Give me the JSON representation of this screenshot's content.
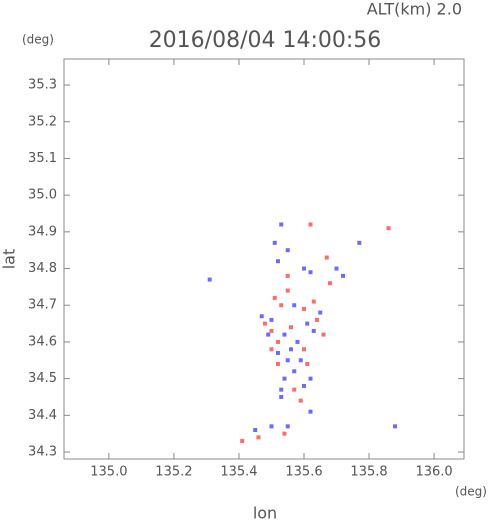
{
  "chart_data": {
    "type": "scatter",
    "title": "2016/08/04 14:00:56",
    "subtitle": "ALT(km) 2.0",
    "x_label": "lon",
    "y_label": "lat",
    "x_unit": "(deg)",
    "y_unit": "(deg)",
    "xlim": [
      134.862,
      136.092
    ],
    "ylim": [
      34.281,
      35.371
    ],
    "xticks": [
      {
        "value": 135.0,
        "label": "135.0"
      },
      135.2,
      135.4,
      135.6,
      135.8,
      {
        "value": 136.0,
        "label": "136.0"
      }
    ],
    "yticks": [
      34.3,
      34.4,
      34.5,
      34.6,
      34.7,
      34.8,
      34.9,
      {
        "value": 35.0,
        "label": "35.0"
      },
      35.1,
      35.2,
      35.3
    ],
    "series": [
      {
        "color": "#6b6bff",
        "x": [
          135.53,
          135.51,
          135.55,
          135.52,
          135.6,
          135.62,
          135.7,
          135.72,
          135.77,
          135.31,
          135.47,
          135.5,
          135.54,
          135.56,
          135.58,
          135.55,
          135.57,
          135.54,
          135.53,
          135.53,
          135.6,
          135.61,
          135.63,
          135.65,
          135.52,
          135.59,
          135.62,
          135.45,
          135.5,
          135.55,
          135.88,
          135.62,
          135.57,
          135.49
        ],
        "y": [
          34.92,
          34.87,
          34.85,
          34.82,
          34.8,
          34.79,
          34.8,
          34.78,
          34.87,
          34.77,
          34.67,
          34.66,
          34.62,
          34.58,
          34.6,
          34.55,
          34.52,
          34.5,
          34.47,
          34.45,
          34.48,
          34.65,
          34.63,
          34.68,
          34.57,
          34.55,
          34.5,
          34.36,
          34.37,
          34.37,
          34.37,
          34.41,
          34.7,
          34.62
        ]
      },
      {
        "color": "#ff6b6b",
        "x": [
          135.62,
          135.86,
          135.55,
          135.67,
          135.51,
          135.53,
          135.55,
          135.48,
          135.5,
          135.52,
          135.56,
          135.6,
          135.63,
          135.64,
          135.6,
          135.52,
          135.57,
          135.59,
          135.41,
          135.54,
          135.46,
          135.66,
          135.5,
          135.68,
          135.61
        ],
        "y": [
          34.92,
          34.91,
          34.78,
          34.83,
          34.72,
          34.7,
          34.74,
          34.65,
          34.63,
          34.6,
          34.64,
          34.69,
          34.71,
          34.66,
          34.58,
          34.54,
          34.47,
          34.44,
          34.33,
          34.35,
          34.34,
          34.62,
          34.58,
          34.76,
          34.54
        ]
      }
    ]
  }
}
